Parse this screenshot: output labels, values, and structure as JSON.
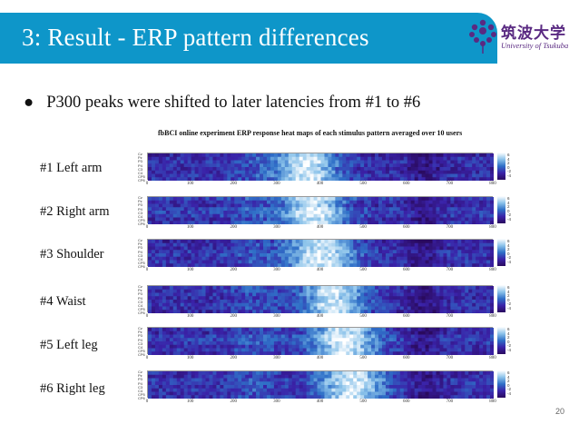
{
  "slide": {
    "title": "3: Result - ERP pattern differences",
    "logo_jp": "筑波大学",
    "logo_en": "University of Tsukuba",
    "bullet_symbol": "●",
    "bullet_text": "P300 peaks were shifted to later latencies from #1 to #6",
    "figure_title": "fbBCI online experiment ERP response heat maps of each stimulus pattern averaged over 10 users",
    "page_number": "20",
    "colors": {
      "title_bar": "#0e96c9",
      "logo": "#5a2a82"
    }
  },
  "chart_data": {
    "type": "heatmap",
    "title": "fbBCI online experiment ERP response heat maps of each stimulus pattern averaged over 10 users",
    "xlabel": "",
    "ylabel": "",
    "x_ticks": [
      "0",
      "100",
      "200",
      "300",
      "400",
      "500",
      "600",
      "700",
      "800"
    ],
    "xlim": [
      0,
      800
    ],
    "channels": [
      "Cz",
      "Pz",
      "P3",
      "P4",
      "C3",
      "C4",
      "CP5",
      "CP6"
    ],
    "colorbar_ticks": [
      "6",
      "4",
      "2",
      "0",
      "-2",
      "-4"
    ],
    "colormap": [
      "#2a0a5e",
      "#3a22a8",
      "#2f6fc7",
      "#8cc3ea",
      "#ffffff"
    ],
    "panels": [
      {
        "label": "#1 Left arm",
        "peak_ms": 370,
        "peak_width_ms": 70
      },
      {
        "label": "#2 Right arm",
        "peak_ms": 385,
        "peak_width_ms": 70
      },
      {
        "label": "#3 Shoulder",
        "peak_ms": 400,
        "peak_width_ms": 75
      },
      {
        "label": "#4 Waist",
        "peak_ms": 430,
        "peak_width_ms": 70
      },
      {
        "label": "#5 Left leg",
        "peak_ms": 455,
        "peak_width_ms": 75
      },
      {
        "label": "#6 Right leg",
        "peak_ms": 470,
        "peak_width_ms": 75
      }
    ]
  }
}
